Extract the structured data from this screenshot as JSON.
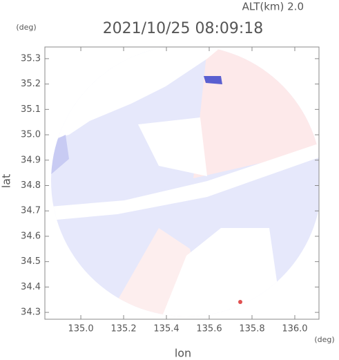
{
  "chart_data": {
    "type": "radar-map",
    "title": "2021/10/25 08:09:18",
    "altitude_label": "ALT(km) 2.0",
    "x_label": "lon",
    "y_label": "lat",
    "x_unit": "(deg)",
    "y_unit": "(deg)",
    "xlim": [
      134.832,
      136.113
    ],
    "ylim": [
      34.273,
      35.346
    ],
    "xticks": [
      {
        "value": 135,
        "label": "135.0"
      },
      135.2,
      135.4,
      135.6,
      135.8,
      {
        "value": 136,
        "label": "136.0"
      }
    ],
    "yticks": [
      34.3,
      34.4,
      34.5,
      34.6,
      34.7,
      34.8,
      34.9,
      {
        "value": 35,
        "label": "35.0"
      },
      35.1,
      35.2,
      35.3
    ]
  }
}
